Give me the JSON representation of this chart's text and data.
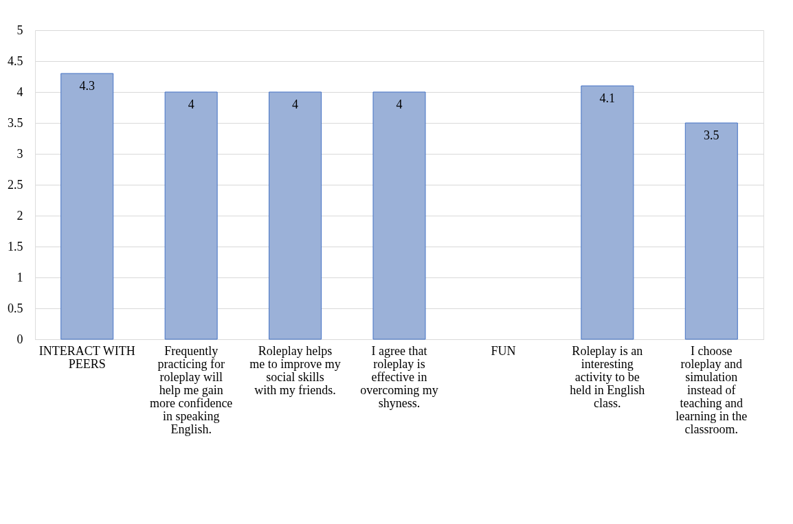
{
  "chart_data": {
    "type": "bar",
    "categories": [
      "INTERACT WITH PEERS",
      "Frequently practicing for roleplay will help me gain more confidence in speaking English.",
      "Roleplay helps me to improve my social skills with my friends.",
      "I agree that roleplay is effective in overcoming my shyness.",
      "FUN",
      "Roleplay is an interesting activity to be held in English class.",
      "I choose roleplay and simulation instead of teaching and learning in the classroom."
    ],
    "values": [
      4.3,
      4,
      4,
      4,
      null,
      4.1,
      3.5
    ],
    "color": "#9bb1d8",
    "ylim": [
      0,
      5
    ],
    "yticks": [
      0,
      0.5,
      1,
      1.5,
      2,
      2.5,
      3,
      3.5,
      4,
      4.5,
      5
    ],
    "grid": "y",
    "data_labels": true
  }
}
